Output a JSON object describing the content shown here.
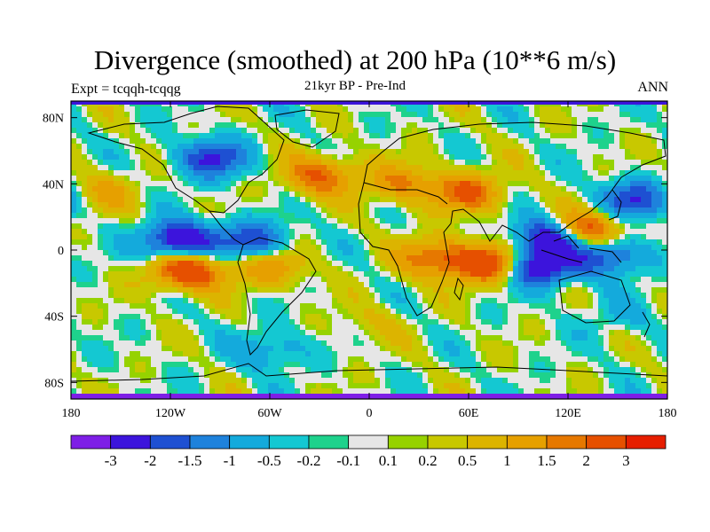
{
  "header": {
    "title": "Divergence (smoothed) at 200 hPa (10**6 m/s)",
    "subtitle": "21kyr BP - Pre-Ind",
    "left_label": "Expt = tcqqh-tcqqg",
    "right_label": "ANN"
  },
  "map": {
    "type": "heatmap",
    "projection": "cylindrical-equidistant",
    "lon_range": [
      -180,
      180
    ],
    "lat_range": [
      -90,
      90
    ],
    "x_ticks": [
      {
        "lon": -180,
        "label": "180"
      },
      {
        "lon": -120,
        "label": "120W"
      },
      {
        "lon": -60,
        "label": "60W"
      },
      {
        "lon": 0,
        "label": "0"
      },
      {
        "lon": 60,
        "label": "60E"
      },
      {
        "lon": 120,
        "label": "120E"
      },
      {
        "lon": 180,
        "label": "180"
      }
    ],
    "y_ticks": [
      {
        "lat": 80,
        "label": "80N"
      },
      {
        "lat": 40,
        "label": "40N"
      },
      {
        "lat": 0,
        "label": "0"
      },
      {
        "lat": -40,
        "label": "40S"
      },
      {
        "lat": -80,
        "label": "80S"
      }
    ],
    "anomalies": [
      {
        "lon": -115,
        "lat": 5,
        "value": -3
      },
      {
        "lon": -70,
        "lat": 5,
        "value": -2
      },
      {
        "lon": -110,
        "lat": -12,
        "value": 3
      },
      {
        "lon": -60,
        "lat": -10,
        "value": 1.5
      },
      {
        "lon": 40,
        "lat": -5,
        "value": 2
      },
      {
        "lon": 75,
        "lat": -8,
        "value": 3
      },
      {
        "lon": 130,
        "lat": 12,
        "value": 3
      },
      {
        "lon": 110,
        "lat": 8,
        "value": -3
      },
      {
        "lon": 100,
        "lat": -10,
        "value": -3
      },
      {
        "lon": 145,
        "lat": -3,
        "value": -2
      },
      {
        "lon": 160,
        "lat": 30,
        "value": -2
      },
      {
        "lon": -30,
        "lat": 45,
        "value": 2
      },
      {
        "lon": -95,
        "lat": 55,
        "value": -2
      },
      {
        "lon": 20,
        "lat": 40,
        "value": 1.5
      },
      {
        "lon": 60,
        "lat": 35,
        "value": 2
      },
      {
        "lon": -160,
        "lat": 35,
        "value": 1
      },
      {
        "lon": 0,
        "lat": -45,
        "value": 0.5
      },
      {
        "lon": 150,
        "lat": -40,
        "value": -0.5
      },
      {
        "lon": -60,
        "lat": -60,
        "value": -1
      }
    ]
  },
  "colorbar": {
    "colors": [
      "#7e1ee6",
      "#3c14dc",
      "#1e50d2",
      "#1e82dc",
      "#14aadc",
      "#14c8d2",
      "#1ed28c",
      "#e6e6e6",
      "#96d200",
      "#c8c800",
      "#dcb400",
      "#e6a000",
      "#e67800",
      "#e65000",
      "#e61e00"
    ],
    "labels": [
      "-3",
      "-2",
      "-1.5",
      "-1",
      "-0.5",
      "-0.2",
      "-0.1",
      "0.1",
      "0.2",
      "0.5",
      "1",
      "1.5",
      "2",
      "3"
    ],
    "levels": [
      -3,
      -2,
      -1.5,
      -1,
      -0.5,
      -0.2,
      -0.1,
      0.1,
      0.2,
      0.5,
      1,
      1.5,
      2,
      3
    ]
  }
}
